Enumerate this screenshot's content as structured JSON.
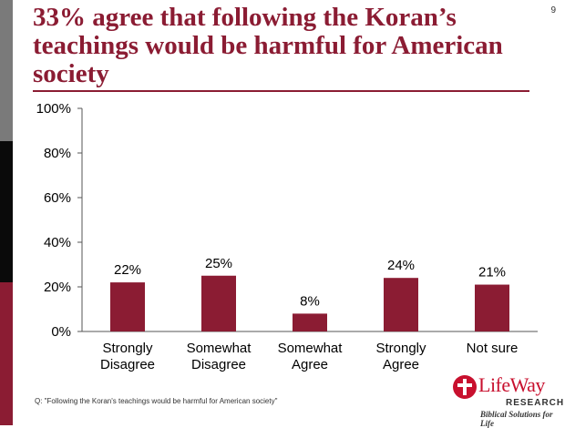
{
  "page_number": "9",
  "title": "33% agree that following the Koran’s teachings would be harmful for American society",
  "question": "Q: \"Following the Koran's teachings would be harmful for American society\"",
  "logo": {
    "name": "LifeWay",
    "sub": "RESEARCH",
    "tagline": "Biblical Solutions for Life"
  },
  "colors": {
    "accent": "#8b1c33",
    "bar": "#8b1c33",
    "logo_red": "#c8102e"
  },
  "chart_data": {
    "type": "bar",
    "categories": [
      [
        "Strongly",
        "Disagree"
      ],
      [
        "Somewhat",
        "Disagree"
      ],
      [
        "Somewhat",
        "Agree"
      ],
      [
        "Strongly",
        "Agree"
      ],
      [
        "Not sure"
      ]
    ],
    "values": [
      22,
      25,
      8,
      24,
      21
    ],
    "data_labels": [
      "22%",
      "25%",
      "8%",
      "24%",
      "21%"
    ],
    "ylim": [
      0,
      100
    ],
    "yticks": [
      0,
      20,
      40,
      60,
      80,
      100
    ],
    "ytick_labels": [
      "0%",
      "20%",
      "40%",
      "60%",
      "80%",
      "100%"
    ],
    "grid": false,
    "title": "",
    "xlabel": "",
    "ylabel": ""
  }
}
